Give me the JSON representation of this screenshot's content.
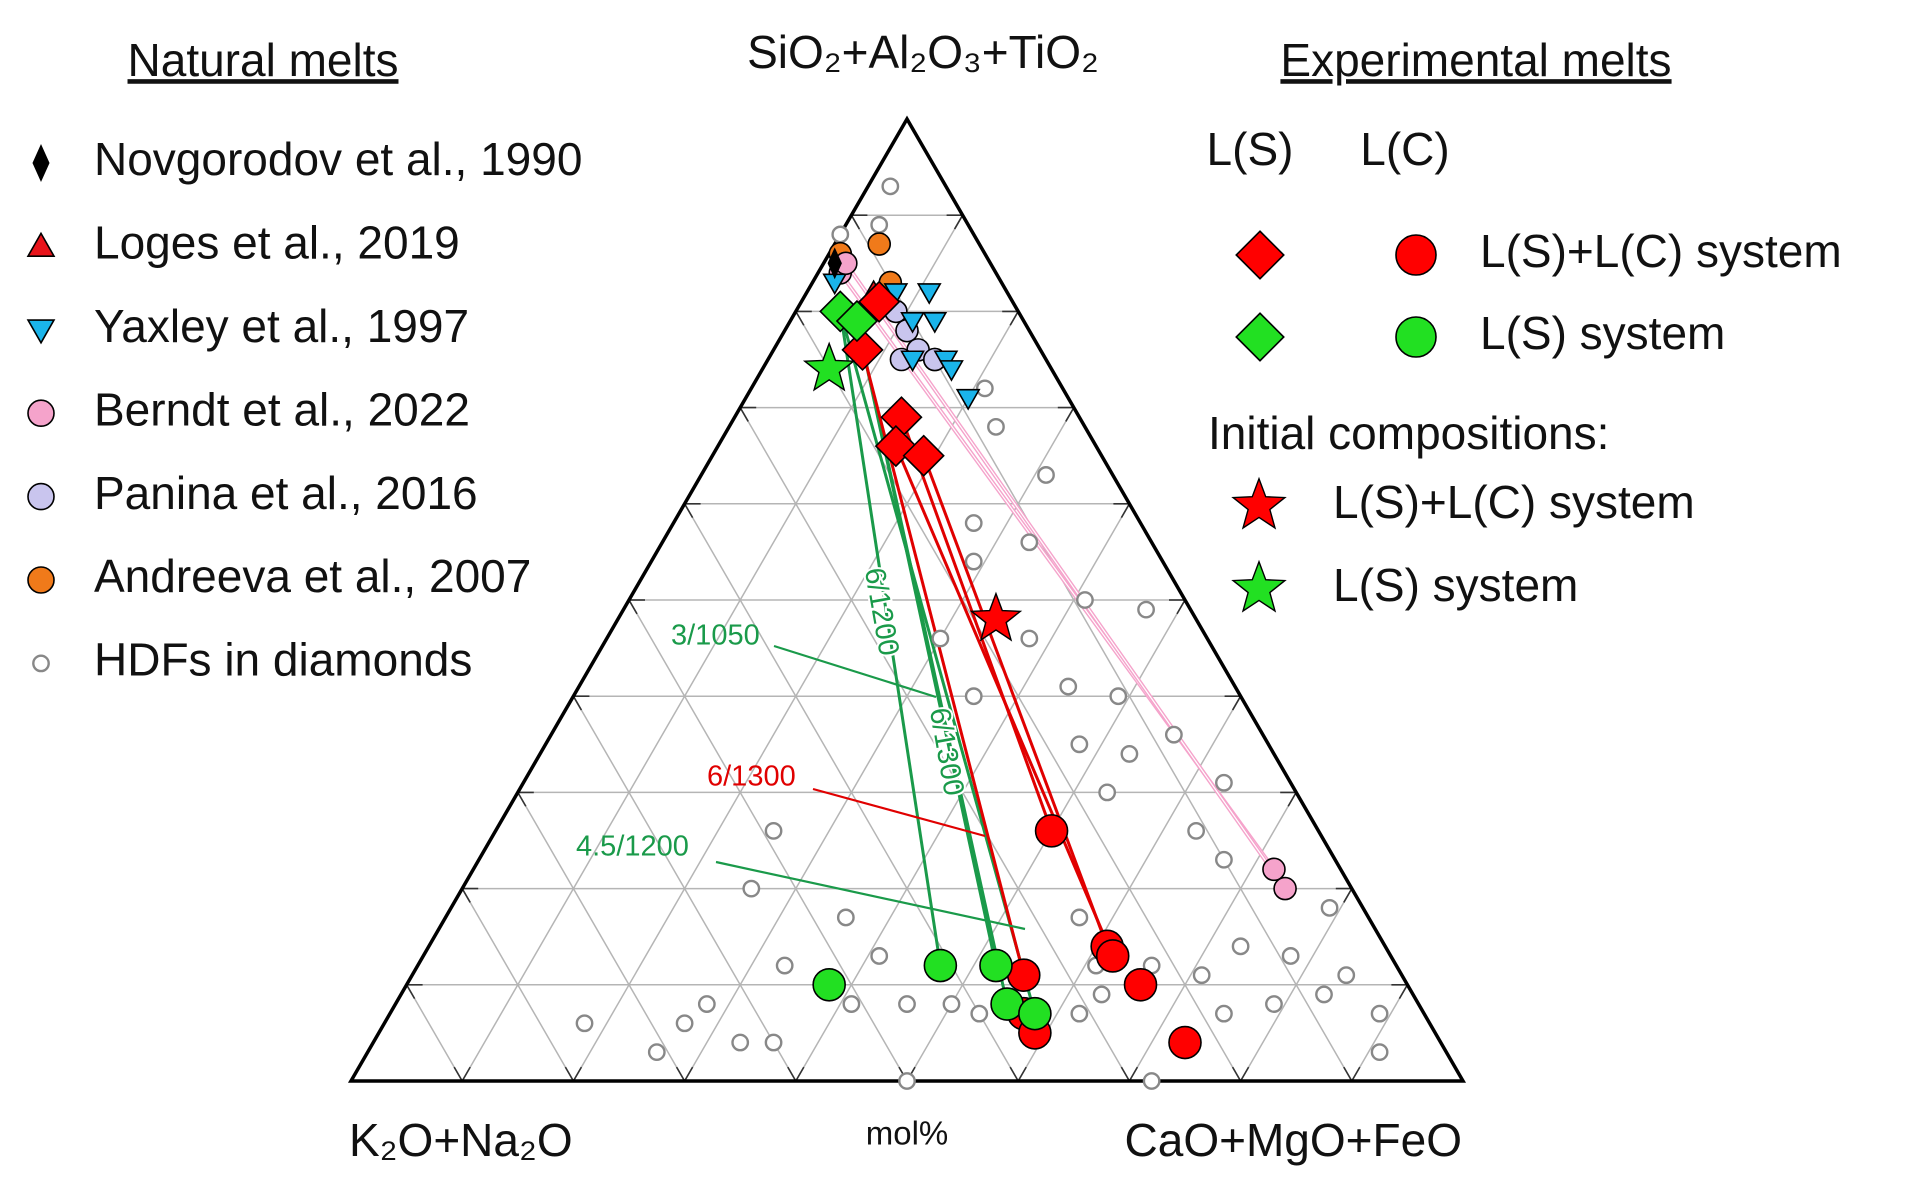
{
  "chart_data": {
    "type": "ternary",
    "axis_labels": {
      "top": "SiO₂+Al₂O₃+TiO₂",
      "left": "K₂O+Na₂O",
      "right": "CaO+MgO+FeO"
    },
    "unit_label": "mol%",
    "ticks": [
      10,
      20,
      30,
      40,
      50,
      60,
      70,
      80,
      90
    ],
    "grid": true,
    "natural_title": "Natural melts",
    "experimental_title": "Experimental melts",
    "natural_series": [
      {
        "name": "Novgorodov et al., 1990",
        "marker": "thin-diamond",
        "color": "#000000",
        "points": [
          [
            85,
            14,
            1
          ]
        ]
      },
      {
        "name": "Loges et al., 2019",
        "marker": "triangle-up",
        "color": "#e8141b",
        "points": [
          [
            81,
            12,
            7
          ],
          [
            82,
            12,
            6
          ]
        ]
      },
      {
        "name": "Yaxley et al., 1997",
        "marker": "triangle-down",
        "color": "#1ab4ea",
        "points": [
          [
            83,
            15,
            2
          ],
          [
            82,
            10,
            8
          ],
          [
            82,
            7,
            11
          ],
          [
            79,
            10,
            11
          ],
          [
            79,
            8,
            13
          ],
          [
            75,
            12,
            13
          ],
          [
            75,
            9,
            16
          ],
          [
            71,
            9,
            20
          ],
          [
            74,
            9,
            17
          ]
        ]
      },
      {
        "name": "Berndt et al., 2022",
        "marker": "circle",
        "color": "#f5a3cb",
        "points": [
          [
            84,
            14,
            2
          ],
          [
            85,
            13,
            2
          ],
          [
            22,
            6,
            72
          ],
          [
            20,
            6,
            74
          ]
        ]
      },
      {
        "name": "Panina et al., 2016",
        "marker": "circle",
        "color": "#c9c5ee",
        "points": [
          [
            78,
            11,
            11
          ],
          [
            76,
            11,
            13
          ],
          [
            80,
            11,
            9
          ],
          [
            75,
            10,
            15
          ],
          [
            75,
            13,
            12
          ]
        ]
      },
      {
        "name": "Andreeva et al., 2007",
        "marker": "circle",
        "color": "#f07a1a",
        "points": [
          [
            86,
            13,
            1
          ],
          [
            87,
            9,
            4
          ],
          [
            83,
            10,
            7
          ],
          [
            75,
            10,
            15
          ]
        ]
      },
      {
        "name": "HDFs in diamonds",
        "marker": "hollow",
        "color": "#888888",
        "points": [
          [
            93,
            5,
            2
          ],
          [
            89,
            8,
            3
          ],
          [
            68,
            8,
            24
          ],
          [
            72,
            7,
            21
          ],
          [
            63,
            6,
            31
          ],
          [
            58,
            15,
            27
          ],
          [
            54,
            17,
            29
          ],
          [
            56,
            11,
            33
          ],
          [
            50,
            9,
            41
          ],
          [
            49,
            4,
            47
          ],
          [
            41,
            15,
            44
          ],
          [
            40,
            11,
            49
          ],
          [
            35,
            17,
            48
          ],
          [
            34,
            13,
            53
          ],
          [
            36,
            8,
            56
          ],
          [
            26,
            11,
            63
          ],
          [
            23,
            10,
            67
          ],
          [
            17,
            26,
            57
          ],
          [
            12,
            22,
            66
          ],
          [
            11,
            18,
            71
          ],
          [
            14,
            13,
            73
          ],
          [
            13,
            9,
            78
          ],
          [
            9,
            8,
            83
          ],
          [
            11,
            5,
            84
          ],
          [
            7,
            4,
            89
          ],
          [
            3,
            6,
            91
          ],
          [
            7,
            18,
            75
          ],
          [
            8,
            13,
            79
          ],
          [
            0,
            28,
            72
          ],
          [
            0,
            50,
            50
          ],
          [
            9,
            28,
            63
          ],
          [
            17,
            47,
            36
          ],
          [
            13,
            46,
            41
          ],
          [
            8,
            51,
            41
          ],
          [
            8,
            46,
            46
          ],
          [
            12,
            55,
            33
          ],
          [
            20,
            54,
            26
          ],
          [
            26,
            49,
            25
          ],
          [
            8,
            64,
            28
          ],
          [
            3,
            71,
            26
          ],
          [
            6,
            67,
            27
          ],
          [
            6,
            76,
            18
          ],
          [
            4,
            63,
            33
          ],
          [
            4,
            60,
            36
          ],
          [
            8,
            42,
            50
          ],
          [
            7,
            40,
            53
          ],
          [
            7,
            31,
            62
          ],
          [
            12,
            27,
            61
          ],
          [
            40,
            24,
            36
          ],
          [
            46,
            24,
            30
          ],
          [
            46,
            16,
            38
          ],
          [
            30,
            17,
            53
          ],
          [
            31,
            6,
            63
          ],
          [
            18,
            3,
            79
          ],
          [
            88,
            12,
            0
          ]
        ]
      }
    ],
    "experimental_headers": [
      "L(S)",
      "L(C)"
    ],
    "experimental_series": [
      {
        "name": "L(S)+L(C) system",
        "color": "#ff0000",
        "ls_points": [
          [
            76,
            16,
            8
          ],
          [
            69,
            16,
            15
          ],
          [
            66,
            18,
            16
          ],
          [
            65,
            16,
            19
          ],
          [
            81,
            12,
            7
          ]
        ],
        "lc_points": [
          [
            26,
            24,
            50
          ],
          [
            14,
            25,
            61
          ],
          [
            13,
            25,
            62
          ],
          [
            10,
            24,
            66
          ],
          [
            4,
            23,
            73
          ],
          [
            11,
            34,
            55
          ],
          [
            7,
            36,
            57
          ],
          [
            5,
            36,
            59
          ]
        ]
      },
      {
        "name": "L(S) system",
        "color": "#22e022",
        "ls_points": [
          [
            80,
            16,
            4
          ],
          [
            79,
            15,
            6
          ]
        ],
        "lc_points": [
          [
            10,
            52,
            38
          ],
          [
            12,
            41,
            47
          ],
          [
            12,
            36,
            52
          ],
          [
            8,
            37,
            55
          ],
          [
            7,
            35,
            58
          ]
        ]
      }
    ],
    "initial_title": "Initial compositions:",
    "initial_series": [
      {
        "name": "L(S)+L(C) system",
        "color": "#ff0000",
        "points": [
          [
            48,
            18,
            34
          ]
        ]
      },
      {
        "name": "L(S) system",
        "color": "#22e022",
        "points": [
          [
            74,
            20,
            6
          ]
        ]
      }
    ],
    "tie_lines": [
      {
        "color": "#1a9a4a",
        "from": [
          80,
          16,
          4
        ],
        "to": [
          12,
          41,
          47
        ]
      },
      {
        "color": "#1a9a4a",
        "from": [
          79,
          15,
          6
        ],
        "to": [
          12,
          36,
          52
        ]
      },
      {
        "color": "#1a9a4a",
        "from": [
          79,
          15,
          6
        ],
        "to": [
          8,
          37,
          55
        ]
      },
      {
        "color": "#1a9a4a",
        "from": [
          80,
          16,
          4
        ],
        "to": [
          7,
          35,
          58
        ]
      },
      {
        "color": "#e00000",
        "from": [
          69,
          16,
          15
        ],
        "to": [
          26,
          24,
          50
        ]
      },
      {
        "color": "#e00000",
        "from": [
          65,
          16,
          19
        ],
        "to": [
          14,
          25,
          61
        ]
      },
      {
        "color": "#e00000",
        "from": [
          66,
          18,
          16
        ],
        "to": [
          13,
          25,
          62
        ]
      },
      {
        "color": "#e00000",
        "from": [
          76,
          16,
          8
        ],
        "to": [
          11,
          34,
          55
        ]
      },
      {
        "color": "#f5a3cb",
        "from": [
          84,
          14,
          2
        ],
        "to": [
          22,
          6,
          72
        ]
      },
      {
        "color": "#f5a3cb",
        "from": [
          85,
          13,
          2
        ],
        "to": [
          20,
          6,
          74
        ]
      }
    ],
    "annotations": [
      {
        "text": "3/1050",
        "color": "#1a9a4a"
      },
      {
        "text": "6/1200",
        "color": "#1a9a4a"
      },
      {
        "text": "6/1300",
        "color": "#1a9a4a"
      },
      {
        "text": "6/1300",
        "color": "#e00000"
      },
      {
        "text": "4.5/1200",
        "color": "#1a9a4a"
      }
    ]
  }
}
